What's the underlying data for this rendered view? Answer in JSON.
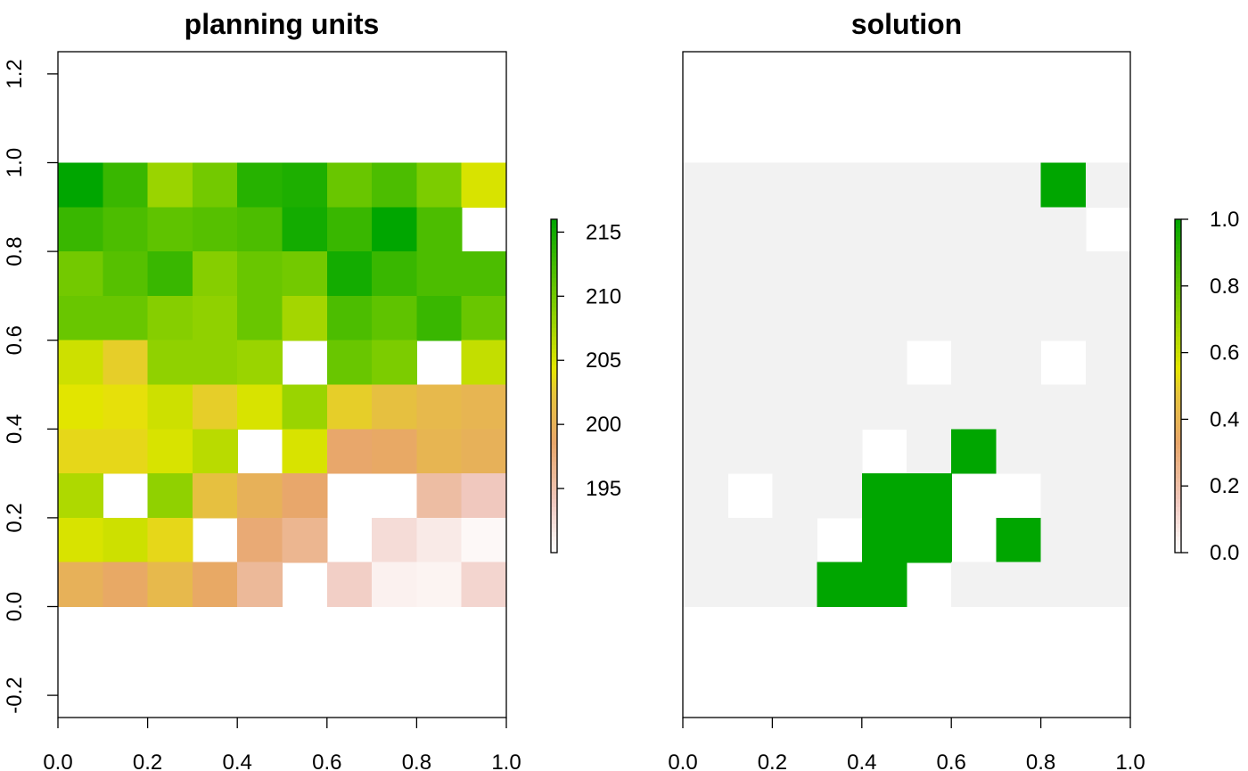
{
  "chart_data": [
    {
      "type": "heatmap",
      "title": "planning units",
      "xlabel": "",
      "ylabel": "",
      "xlim": [
        0,
        1
      ],
      "ylim": [
        -0.25,
        1.25
      ],
      "x_ticks": [
        "0.0",
        "0.2",
        "0.4",
        "0.6",
        "0.8",
        "1.0"
      ],
      "y_ticks": [
        "-0.2",
        "0.0",
        "0.2",
        "0.4",
        "0.6",
        "0.8",
        "1.0",
        "1.2"
      ],
      "grid": false,
      "extent": {
        "xmin": 0,
        "xmax": 1,
        "ymin": 0,
        "ymax": 1
      },
      "ncol": 10,
      "nrow": 10,
      "value_range": [
        190,
        216
      ],
      "colorbar": {
        "ticks": [
          "195",
          "200",
          "205",
          "210",
          "215"
        ],
        "placement": "right"
      },
      "colors": {
        "low": "#ffffff",
        "mid": "#e6e600",
        "high": "#00a600"
      },
      "rows_top_to_bottom": [
        [
          216,
          213,
          208,
          210,
          214,
          214.5,
          210.5,
          212,
          209.5,
          205
        ],
        [
          213,
          212,
          211,
          211.5,
          212,
          215,
          213,
          216,
          212,
          null
        ],
        [
          210,
          211.5,
          213,
          209,
          210.5,
          210,
          215,
          213,
          212,
          212
        ],
        [
          210.5,
          210.5,
          209,
          208.5,
          210.5,
          207.5,
          212,
          211,
          213,
          210.5
        ],
        [
          205.5,
          203,
          208.5,
          208.5,
          208,
          null,
          210.5,
          209.5,
          null,
          206
        ],
        [
          204.5,
          204,
          205.5,
          203,
          205,
          208,
          203,
          202,
          201,
          200.5
        ],
        [
          203.5,
          203.5,
          205,
          206.5,
          null,
          205,
          198.5,
          199,
          200.5,
          200
        ],
        [
          207,
          null,
          208.5,
          202,
          200,
          198.5,
          null,
          null,
          195.5,
          194
        ],
        [
          205,
          205.5,
          203.5,
          null,
          198,
          196.5,
          null,
          192.5,
          191.5,
          190.5
        ],
        [
          200,
          199,
          201,
          199,
          196,
          null,
          193.5,
          191,
          190.8,
          193
        ]
      ]
    },
    {
      "type": "heatmap",
      "title": "solution",
      "xlabel": "",
      "ylabel": "",
      "xlim": [
        0,
        1
      ],
      "ylim": [
        -0.25,
        1.25
      ],
      "x_ticks": [
        "0.0",
        "0.2",
        "0.4",
        "0.6",
        "0.8",
        "1.0"
      ],
      "grid": false,
      "extent": {
        "xmin": 0,
        "xmax": 1,
        "ymin": 0,
        "ymax": 1
      },
      "ncol": 10,
      "nrow": 10,
      "value_range": [
        0,
        1
      ],
      "colorbar": {
        "ticks": [
          "0.0",
          "0.2",
          "0.4",
          "0.6",
          "0.8",
          "1.0"
        ],
        "placement": "right"
      },
      "colors": {
        "selected": "#00a600",
        "not_selected": "#f2f2f2"
      },
      "rows_top_to_bottom": [
        [
          0,
          0,
          0,
          0,
          0,
          0,
          0,
          0,
          1,
          0
        ],
        [
          0,
          0,
          0,
          0,
          0,
          0,
          0,
          0,
          0,
          null
        ],
        [
          0,
          0,
          0,
          0,
          0,
          0,
          0,
          0,
          0,
          0
        ],
        [
          0,
          0,
          0,
          0,
          0,
          0,
          0,
          0,
          0,
          0
        ],
        [
          0,
          0,
          0,
          0,
          0,
          null,
          0,
          0,
          null,
          0
        ],
        [
          0,
          0,
          0,
          0,
          0,
          0,
          0,
          0,
          0,
          0
        ],
        [
          0,
          0,
          0,
          0,
          null,
          0,
          1,
          0,
          0,
          0
        ],
        [
          0,
          null,
          0,
          0,
          1,
          1,
          null,
          null,
          0,
          0
        ],
        [
          0,
          0,
          0,
          null,
          1,
          1,
          null,
          1,
          0,
          0
        ],
        [
          0,
          0,
          0,
          1,
          1,
          null,
          0,
          0,
          0,
          0
        ]
      ]
    }
  ]
}
